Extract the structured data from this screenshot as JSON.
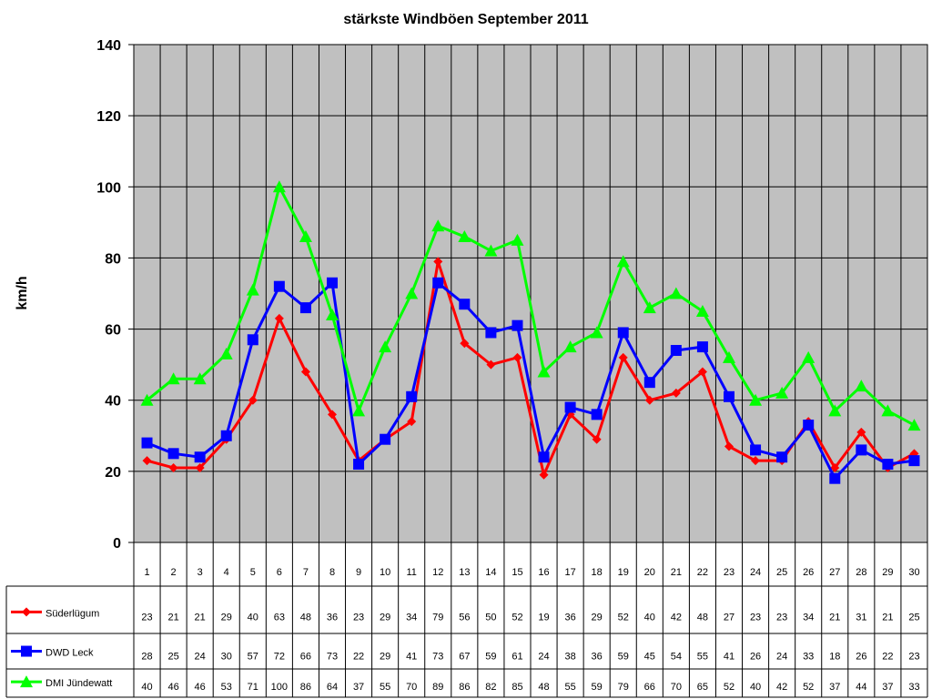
{
  "chart_data": {
    "type": "line",
    "title": "stärkste Windböen September 2011",
    "xlabel": "",
    "ylabel": "km/h",
    "ylim": [
      0,
      140
    ],
    "yticks": [
      0,
      20,
      40,
      60,
      80,
      100,
      120,
      140
    ],
    "grid": true,
    "legend": "data-table-left",
    "categories": [
      "1",
      "2",
      "3",
      "4",
      "5",
      "6",
      "7",
      "8",
      "9",
      "10",
      "11",
      "12",
      "13",
      "14",
      "15",
      "16",
      "17",
      "18",
      "19",
      "20",
      "21",
      "22",
      "23",
      "24",
      "25",
      "26",
      "27",
      "28",
      "29",
      "30"
    ],
    "series": [
      {
        "name": "Süderlügum",
        "color": "#ff0000",
        "marker": "diamond",
        "values": [
          23,
          21,
          21,
          29,
          40,
          63,
          48,
          36,
          23,
          29,
          34,
          79,
          56,
          50,
          52,
          19,
          36,
          29,
          52,
          40,
          42,
          48,
          27,
          23,
          23,
          34,
          21,
          31,
          21,
          25
        ]
      },
      {
        "name": "DWD Leck",
        "color": "#0000ff",
        "marker": "square",
        "values": [
          28,
          25,
          24,
          30,
          57,
          72,
          66,
          73,
          22,
          29,
          41,
          73,
          67,
          59,
          61,
          24,
          38,
          36,
          59,
          45,
          54,
          55,
          41,
          26,
          24,
          33,
          18,
          26,
          22,
          23
        ]
      },
      {
        "name": "DMI Jündewatt",
        "color": "#00ff00",
        "marker": "triangle",
        "values": [
          40,
          46,
          46,
          53,
          71,
          100,
          86,
          64,
          37,
          55,
          70,
          89,
          86,
          82,
          85,
          48,
          55,
          59,
          79,
          66,
          70,
          65,
          52,
          40,
          42,
          52,
          37,
          44,
          37,
          33
        ]
      }
    ]
  }
}
